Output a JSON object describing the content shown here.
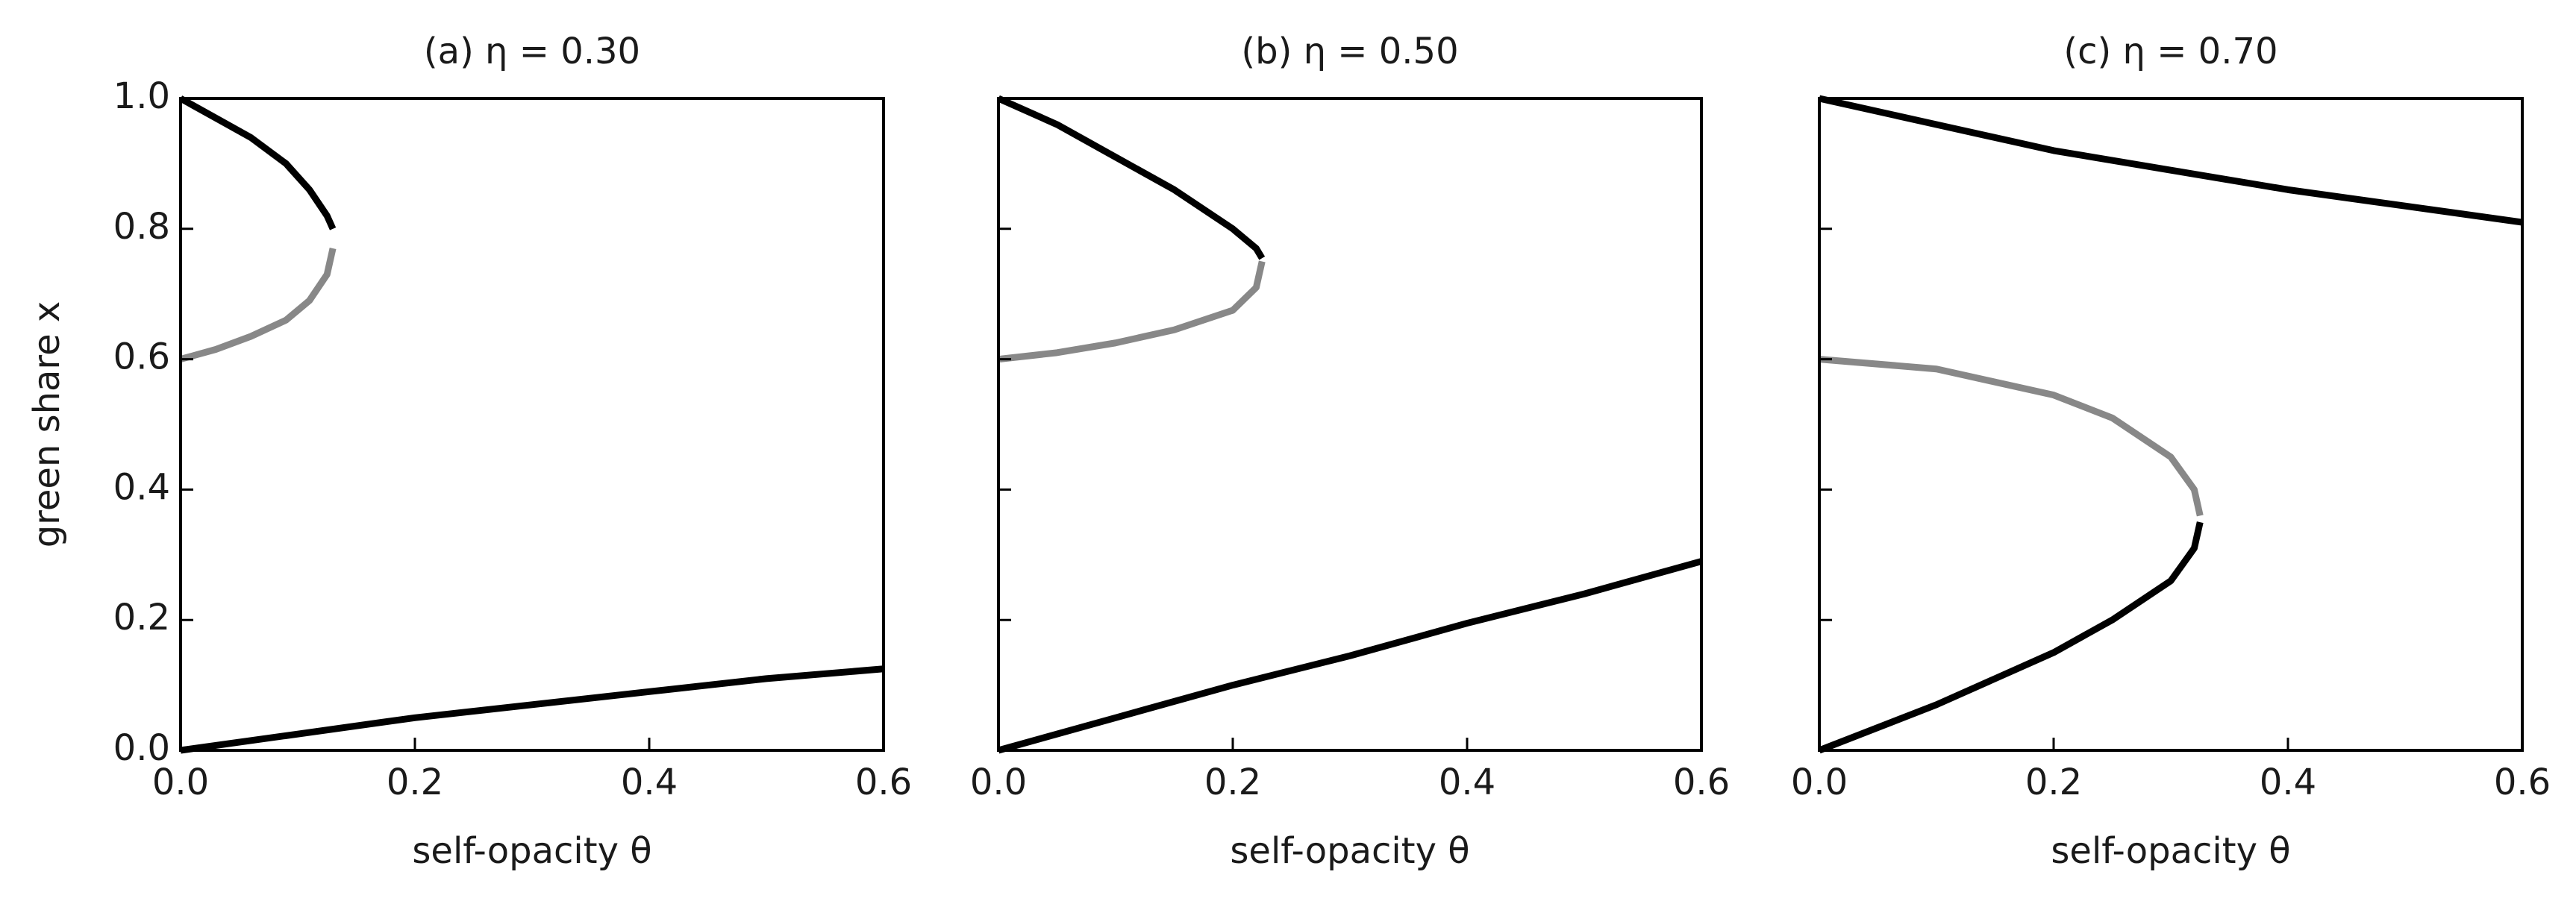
{
  "chart_data": [
    {
      "type": "line",
      "title": "(a) η = 0.30",
      "xlabel": "self-opacity θ",
      "ylabel": "green share x",
      "xlim": [
        0,
        0.6
      ],
      "ylim": [
        0,
        1
      ],
      "show_ytick_labels": true,
      "xticks": [
        {
          "value": 0,
          "label": "0.0"
        },
        0.2,
        0.4,
        0.6
      ],
      "yticks": [
        {
          "value": 0,
          "label": "0.0"
        },
        0.2,
        0.4,
        0.6,
        0.8,
        {
          "value": 1,
          "label": "1.0"
        }
      ],
      "series": [
        {
          "color": "#000000",
          "x": [
            0,
            0.03,
            0.06,
            0.09,
            0.11,
            0.125,
            0.13
          ],
          "values": [
            1.0,
            0.97,
            0.94,
            0.9,
            0.86,
            0.82,
            0.8
          ]
        },
        {
          "color": "#888888",
          "x": [
            0,
            0.03,
            0.06,
            0.09,
            0.11,
            0.125,
            0.13
          ],
          "values": [
            0.6,
            0.615,
            0.635,
            0.66,
            0.69,
            0.73,
            0.77
          ]
        },
        {
          "color": "#000000",
          "x": [
            0,
            0.1,
            0.2,
            0.3,
            0.4,
            0.5,
            0.6
          ],
          "values": [
            0,
            0.025,
            0.05,
            0.07,
            0.09,
            0.11,
            0.125
          ]
        }
      ]
    },
    {
      "type": "line",
      "title": "(b) η = 0.50",
      "xlabel": "self-opacity θ",
      "xlim": [
        0,
        0.6
      ],
      "ylim": [
        0,
        1
      ],
      "show_ytick_labels": false,
      "xticks": [
        {
          "value": 0,
          "label": "0.0"
        },
        0.2,
        0.4,
        0.6
      ],
      "yticks": [
        0,
        0.2,
        0.4,
        0.6,
        0.8,
        1
      ],
      "series": [
        {
          "color": "#000000",
          "x": [
            0,
            0.05,
            0.1,
            0.15,
            0.2,
            0.22,
            0.225
          ],
          "values": [
            1.0,
            0.96,
            0.91,
            0.86,
            0.8,
            0.77,
            0.755
          ]
        },
        {
          "color": "#888888",
          "x": [
            0,
            0.05,
            0.1,
            0.15,
            0.2,
            0.22,
            0.225
          ],
          "values": [
            0.6,
            0.61,
            0.625,
            0.645,
            0.675,
            0.71,
            0.75
          ]
        },
        {
          "color": "#000000",
          "x": [
            0,
            0.1,
            0.2,
            0.3,
            0.4,
            0.5,
            0.6
          ],
          "values": [
            0,
            0.05,
            0.1,
            0.145,
            0.195,
            0.24,
            0.29
          ]
        }
      ]
    },
    {
      "type": "line",
      "title": "(c) η = 0.70",
      "xlabel": "self-opacity θ",
      "xlim": [
        0,
        0.6
      ],
      "ylim": [
        0,
        1
      ],
      "show_ytick_labels": false,
      "xticks": [
        {
          "value": 0,
          "label": "0.0"
        },
        0.2,
        0.4,
        0.6
      ],
      "yticks": [
        0,
        0.2,
        0.4,
        0.6,
        0.8,
        1
      ],
      "series": [
        {
          "color": "#000000",
          "x": [
            0,
            0.1,
            0.2,
            0.3,
            0.4,
            0.5,
            0.6
          ],
          "values": [
            1.0,
            0.96,
            0.92,
            0.89,
            0.86,
            0.835,
            0.81
          ]
        },
        {
          "color": "#888888",
          "x": [
            0,
            0.1,
            0.2,
            0.25,
            0.3,
            0.32,
            0.325
          ],
          "values": [
            0.6,
            0.585,
            0.545,
            0.51,
            0.45,
            0.4,
            0.36
          ]
        },
        {
          "color": "#000000",
          "x": [
            0,
            0.1,
            0.2,
            0.25,
            0.3,
            0.32,
            0.325
          ],
          "values": [
            0,
            0.07,
            0.15,
            0.2,
            0.26,
            0.31,
            0.35
          ]
        }
      ]
    }
  ]
}
